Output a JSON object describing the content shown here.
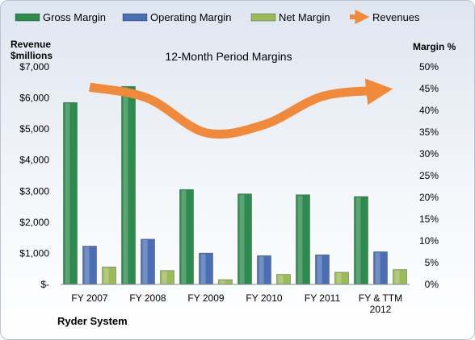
{
  "chart_data": {
    "type": "bar",
    "title": "12-Month Period Margins",
    "company": "Ryder System",
    "y_left_label": [
      "Revenue",
      "$millions"
    ],
    "y_right_label": "Margin %",
    "y_left_range": [
      0,
      7000
    ],
    "y_left_ticks": [
      "$-",
      "$1,000",
      "$2,000",
      "$3,000",
      "$4,000",
      "$5,000",
      "$6,000",
      "$7,000"
    ],
    "y_right_range": [
      0,
      50
    ],
    "y_right_ticks": [
      "0%",
      "5%",
      "10%",
      "15%",
      "20%",
      "25%",
      "30%",
      "35%",
      "40%",
      "45%",
      "50%"
    ],
    "categories": [
      [
        "FY 2007"
      ],
      [
        "FY 2008"
      ],
      [
        "FY 2009"
      ],
      [
        "FY 2010"
      ],
      [
        "FY 2011"
      ],
      [
        "FY & TTM",
        "2012"
      ]
    ],
    "legend_position": "top",
    "grid": false,
    "series": [
      {
        "name": "Gross Margin",
        "axis": "right",
        "type": "bar",
        "color": "#2e8b4e",
        "values": [
          41.8,
          45.5,
          21.8,
          20.8,
          20.6,
          20.2
        ]
      },
      {
        "name": "Operating Margin",
        "axis": "right",
        "type": "bar",
        "color": "#4a6fb5",
        "values": [
          8.8,
          10.4,
          7.2,
          6.6,
          6.8,
          7.5
        ]
      },
      {
        "name": "Net Margin",
        "axis": "right",
        "type": "bar",
        "color": "#9bbb59",
        "values": [
          4.0,
          3.2,
          1.1,
          2.3,
          2.8,
          3.4
        ]
      },
      {
        "name": "Revenues",
        "axis": "left",
        "type": "line",
        "color": "#f08a3a",
        "values": [
          6350,
          5990,
          4880,
          5140,
          6050,
          6250
        ]
      }
    ]
  }
}
